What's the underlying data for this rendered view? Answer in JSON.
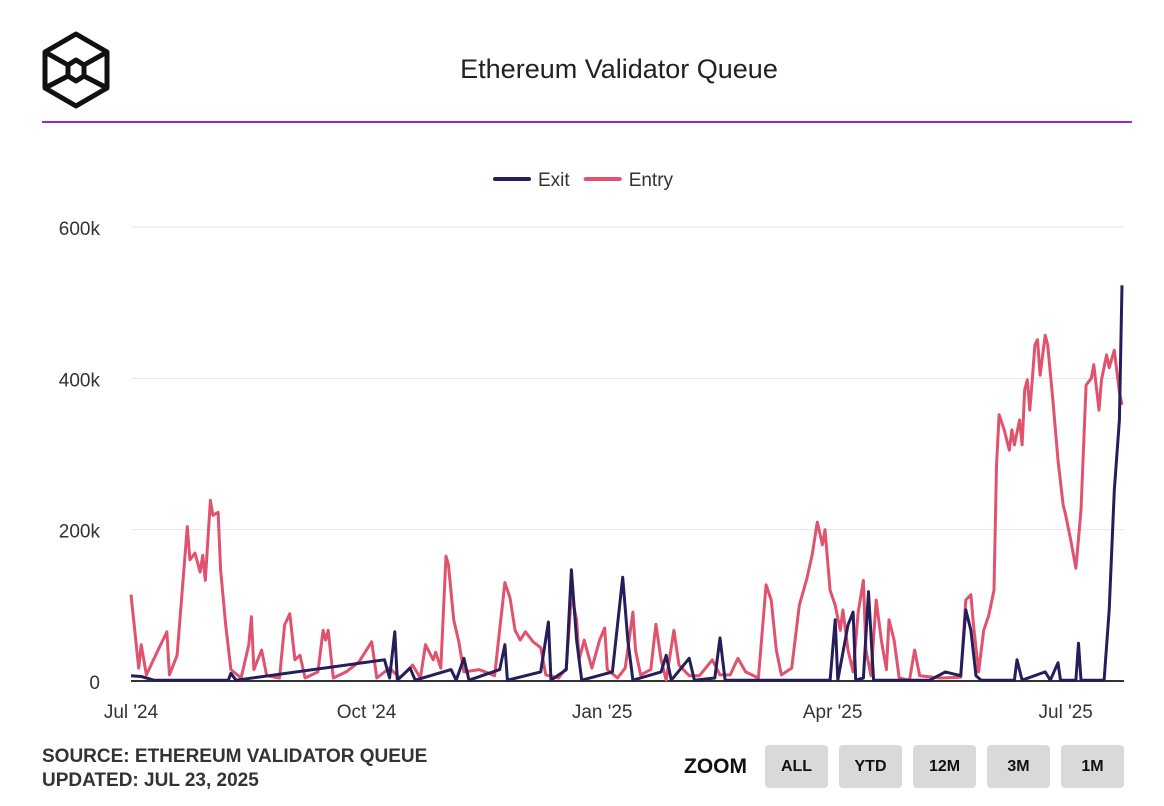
{
  "header": {
    "title": "Ethereum Validator Queue"
  },
  "footer": {
    "source": "SOURCE: ETHEREUM VALIDATOR QUEUE",
    "updated": "UPDATED: JUL 23, 2025"
  },
  "zoom": {
    "label": "ZOOM",
    "buttons": [
      "ALL",
      "YTD",
      "12M",
      "3M",
      "1M"
    ]
  },
  "chart_data": {
    "type": "line",
    "title": "Ethereum Validator Queue",
    "xlabel": "",
    "ylabel": "",
    "xlim": [
      "2024-07-01",
      "2025-07-23"
    ],
    "ylim": [
      0,
      600000
    ],
    "yticks": [
      0,
      200000,
      400000,
      600000
    ],
    "ytick_labels": [
      "0",
      "200k",
      "400k",
      "600k"
    ],
    "xticks": [
      "2024-07-01",
      "2024-10-01",
      "2025-01-01",
      "2025-04-01",
      "2025-07-01"
    ],
    "xtick_labels": [
      "Jul '24",
      "Oct '24",
      "Jan '25",
      "Apr '25",
      "Jul '25"
    ],
    "grid": true,
    "legend": "top",
    "series": [
      {
        "name": "Exit",
        "color": "#261e5a",
        "points": [
          [
            "2024-07-01",
            7
          ],
          [
            "2024-07-05",
            6
          ],
          [
            "2024-07-10",
            1
          ],
          [
            "2024-08-08",
            1
          ],
          [
            "2024-08-09",
            10
          ],
          [
            "2024-08-11",
            1
          ],
          [
            "2024-10-08",
            28
          ],
          [
            "2024-10-10",
            4
          ],
          [
            "2024-10-12",
            65
          ],
          [
            "2024-10-13",
            1
          ],
          [
            "2024-10-18",
            17
          ],
          [
            "2024-10-20",
            1
          ],
          [
            "2024-11-03",
            15
          ],
          [
            "2024-11-05",
            1
          ],
          [
            "2024-11-08",
            30
          ],
          [
            "2024-11-10",
            1
          ],
          [
            "2024-11-22",
            15
          ],
          [
            "2024-11-24",
            48
          ],
          [
            "2024-11-25",
            1
          ],
          [
            "2024-12-08",
            12
          ],
          [
            "2024-12-11",
            78
          ],
          [
            "2024-12-12",
            1
          ],
          [
            "2024-12-18",
            15
          ],
          [
            "2024-12-20",
            147
          ],
          [
            "2024-12-22",
            54
          ],
          [
            "2024-12-24",
            1
          ],
          [
            "2025-01-05",
            12
          ],
          [
            "2025-01-09",
            137
          ],
          [
            "2025-01-11",
            54
          ],
          [
            "2025-01-13",
            1
          ],
          [
            "2025-01-24",
            12
          ],
          [
            "2025-01-26",
            34
          ],
          [
            "2025-01-28",
            1
          ],
          [
            "2025-02-04",
            30
          ],
          [
            "2025-02-06",
            1
          ],
          [
            "2025-02-14",
            4
          ],
          [
            "2025-02-16",
            57
          ],
          [
            "2025-02-18",
            1
          ],
          [
            "2025-03-31",
            1
          ],
          [
            "2025-04-02",
            81
          ],
          [
            "2025-04-03",
            1
          ],
          [
            "2025-04-07",
            74
          ],
          [
            "2025-04-09",
            91
          ],
          [
            "2025-04-10",
            1
          ],
          [
            "2025-04-13",
            4
          ],
          [
            "2025-04-15",
            118
          ],
          [
            "2025-04-17",
            1
          ],
          [
            "2025-05-09",
            1
          ],
          [
            "2025-05-15",
            12
          ],
          [
            "2025-05-21",
            7
          ],
          [
            "2025-05-23",
            94
          ],
          [
            "2025-05-25",
            67
          ],
          [
            "2025-05-27",
            7
          ],
          [
            "2025-05-29",
            1
          ],
          [
            "2025-06-11",
            1
          ],
          [
            "2025-06-12",
            28
          ],
          [
            "2025-06-14",
            1
          ],
          [
            "2025-06-23",
            12
          ],
          [
            "2025-06-25",
            1
          ],
          [
            "2025-06-28",
            24
          ],
          [
            "2025-06-29",
            1
          ],
          [
            "2025-07-05",
            1
          ],
          [
            "2025-07-06",
            50
          ],
          [
            "2025-07-07",
            1
          ],
          [
            "2025-07-16",
            1
          ],
          [
            "2025-07-18",
            94
          ],
          [
            "2025-07-20",
            252
          ],
          [
            "2025-07-22",
            345
          ],
          [
            "2025-07-23",
            523
          ]
        ]
      },
      {
        "name": "Entry",
        "color": "#e0526d",
        "points": [
          [
            "2024-07-01",
            114
          ],
          [
            "2024-07-04",
            17
          ],
          [
            "2024-07-05",
            48
          ],
          [
            "2024-07-07",
            8
          ],
          [
            "2024-07-12",
            44
          ],
          [
            "2024-07-15",
            65
          ],
          [
            "2024-07-16",
            8
          ],
          [
            "2024-07-19",
            34
          ],
          [
            "2024-07-23",
            204
          ],
          [
            "2024-07-24",
            160
          ],
          [
            "2024-07-26",
            169
          ],
          [
            "2024-07-28",
            144
          ],
          [
            "2024-07-29",
            166
          ],
          [
            "2024-07-30",
            133
          ],
          [
            "2024-08-01",
            239
          ],
          [
            "2024-08-02",
            219
          ],
          [
            "2024-08-04",
            223
          ],
          [
            "2024-08-05",
            147
          ],
          [
            "2024-08-07",
            74
          ],
          [
            "2024-08-09",
            15
          ],
          [
            "2024-08-13",
            4
          ],
          [
            "2024-08-16",
            48
          ],
          [
            "2024-08-17",
            85
          ],
          [
            "2024-08-18",
            15
          ],
          [
            "2024-08-21",
            41
          ],
          [
            "2024-08-23",
            7
          ],
          [
            "2024-08-28",
            4
          ],
          [
            "2024-08-30",
            74
          ],
          [
            "2024-09-01",
            89
          ],
          [
            "2024-09-03",
            28
          ],
          [
            "2024-09-05",
            34
          ],
          [
            "2024-09-07",
            4
          ],
          [
            "2024-09-12",
            12
          ],
          [
            "2024-09-14",
            67
          ],
          [
            "2024-09-15",
            54
          ],
          [
            "2024-09-16",
            67
          ],
          [
            "2024-09-18",
            4
          ],
          [
            "2024-09-23",
            12
          ],
          [
            "2024-09-28",
            25
          ],
          [
            "2024-10-03",
            52
          ],
          [
            "2024-10-05",
            4
          ],
          [
            "2024-10-10",
            17
          ],
          [
            "2024-10-14",
            4
          ],
          [
            "2024-10-19",
            21
          ],
          [
            "2024-10-22",
            4
          ],
          [
            "2024-10-24",
            48
          ],
          [
            "2024-10-27",
            28
          ],
          [
            "2024-10-28",
            38
          ],
          [
            "2024-10-30",
            17
          ],
          [
            "2024-11-01",
            165
          ],
          [
            "2024-11-02",
            153
          ],
          [
            "2024-11-04",
            81
          ],
          [
            "2024-11-06",
            52
          ],
          [
            "2024-11-08",
            12
          ],
          [
            "2024-11-14",
            15
          ],
          [
            "2024-11-20",
            7
          ],
          [
            "2024-11-24",
            130
          ],
          [
            "2024-11-26",
            110
          ],
          [
            "2024-11-28",
            67
          ],
          [
            "2024-11-30",
            54
          ],
          [
            "2024-12-02",
            65
          ],
          [
            "2024-12-05",
            52
          ],
          [
            "2024-12-08",
            44
          ],
          [
            "2024-12-10",
            8
          ],
          [
            "2024-12-15",
            4
          ],
          [
            "2024-12-18",
            17
          ],
          [
            "2024-12-20",
            114
          ],
          [
            "2024-12-22",
            81
          ],
          [
            "2024-12-23",
            28
          ],
          [
            "2024-12-25",
            54
          ],
          [
            "2024-12-28",
            17
          ],
          [
            "2024-12-31",
            54
          ],
          [
            "2025-01-02",
            70
          ],
          [
            "2025-01-03",
            15
          ],
          [
            "2025-01-07",
            4
          ],
          [
            "2025-01-10",
            17
          ],
          [
            "2025-01-13",
            91
          ],
          [
            "2025-01-14",
            41
          ],
          [
            "2025-01-16",
            8
          ],
          [
            "2025-01-20",
            15
          ],
          [
            "2025-01-22",
            75
          ],
          [
            "2025-01-24",
            28
          ],
          [
            "2025-01-26",
            1
          ],
          [
            "2025-01-29",
            67
          ],
          [
            "2025-01-31",
            21
          ],
          [
            "2025-02-04",
            7
          ],
          [
            "2025-02-08",
            7
          ],
          [
            "2025-02-13",
            28
          ],
          [
            "2025-02-16",
            8
          ],
          [
            "2025-02-20",
            8
          ],
          [
            "2025-02-23",
            30
          ],
          [
            "2025-02-26",
            12
          ],
          [
            "2025-03-03",
            4
          ],
          [
            "2025-03-06",
            127
          ],
          [
            "2025-03-08",
            107
          ],
          [
            "2025-03-10",
            41
          ],
          [
            "2025-03-12",
            8
          ],
          [
            "2025-03-16",
            17
          ],
          [
            "2025-03-19",
            100
          ],
          [
            "2025-03-22",
            136
          ],
          [
            "2025-03-24",
            167
          ],
          [
            "2025-03-26",
            210
          ],
          [
            "2025-03-28",
            180
          ],
          [
            "2025-03-29",
            200
          ],
          [
            "2025-03-31",
            120
          ],
          [
            "2025-04-02",
            100
          ],
          [
            "2025-04-04",
            67
          ],
          [
            "2025-04-05",
            94
          ],
          [
            "2025-04-07",
            41
          ],
          [
            "2025-04-09",
            12
          ],
          [
            "2025-04-11",
            91
          ],
          [
            "2025-04-13",
            133
          ],
          [
            "2025-04-14",
            41
          ],
          [
            "2025-04-16",
            7
          ],
          [
            "2025-04-18",
            107
          ],
          [
            "2025-04-20",
            54
          ],
          [
            "2025-04-22",
            15
          ],
          [
            "2025-04-23",
            81
          ],
          [
            "2025-04-25",
            54
          ],
          [
            "2025-04-27",
            4
          ],
          [
            "2025-05-01",
            1
          ],
          [
            "2025-05-03",
            41
          ],
          [
            "2025-05-05",
            7
          ],
          [
            "2025-05-13",
            4
          ],
          [
            "2025-05-21",
            5
          ],
          [
            "2025-05-23",
            107
          ],
          [
            "2025-05-25",
            114
          ],
          [
            "2025-05-26",
            74
          ],
          [
            "2025-05-28",
            12
          ],
          [
            "2025-05-30",
            67
          ],
          [
            "2025-06-01",
            87
          ],
          [
            "2025-06-03",
            120
          ],
          [
            "2025-06-04",
            285
          ],
          [
            "2025-06-05",
            352
          ],
          [
            "2025-06-07",
            332
          ],
          [
            "2025-06-09",
            305
          ],
          [
            "2025-06-10",
            332
          ],
          [
            "2025-06-11",
            312
          ],
          [
            "2025-06-13",
            345
          ],
          [
            "2025-06-14",
            312
          ],
          [
            "2025-06-15",
            385
          ],
          [
            "2025-06-16",
            398
          ],
          [
            "2025-06-17",
            358
          ],
          [
            "2025-06-18",
            400
          ],
          [
            "2025-06-19",
            444
          ],
          [
            "2025-06-20",
            451
          ],
          [
            "2025-06-21",
            404
          ],
          [
            "2025-06-23",
            457
          ],
          [
            "2025-06-24",
            444
          ],
          [
            "2025-06-26",
            371
          ],
          [
            "2025-06-28",
            292
          ],
          [
            "2025-06-30",
            233
          ],
          [
            "2025-07-01",
            219
          ],
          [
            "2025-07-03",
            186
          ],
          [
            "2025-07-05",
            149
          ],
          [
            "2025-07-07",
            226
          ],
          [
            "2025-07-09",
            391
          ],
          [
            "2025-07-11",
            400
          ],
          [
            "2025-07-12",
            418
          ],
          [
            "2025-07-14",
            358
          ],
          [
            "2025-07-15",
            398
          ],
          [
            "2025-07-17",
            431
          ],
          [
            "2025-07-18",
            414
          ],
          [
            "2025-07-20",
            437
          ],
          [
            "2025-07-22",
            382
          ],
          [
            "2025-07-23",
            365
          ]
        ]
      }
    ],
    "value_unit_multiplier": 1000
  }
}
